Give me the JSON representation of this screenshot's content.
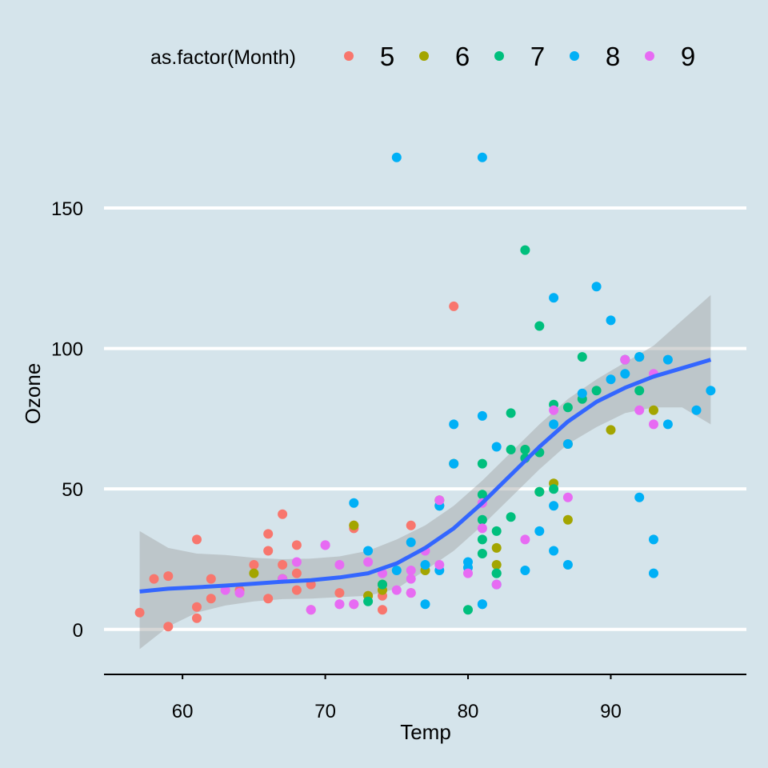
{
  "chart_data": {
    "type": "scatter",
    "xlabel": "Temp",
    "ylabel": "Ozone",
    "xlim": [
      54.5,
      99.5
    ],
    "ylim": [
      -16,
      187
    ],
    "x_ticks": [
      60,
      70,
      80,
      90
    ],
    "y_ticks": [
      0,
      50,
      100,
      150
    ],
    "x_tick_labels": [
      "60",
      "70",
      "80",
      "90"
    ],
    "y_tick_labels": [
      "0",
      "50",
      "100",
      "150"
    ],
    "grid": "horizontal major lines only",
    "background_color": "#d5e4eb",
    "grid_color": "#ffffff",
    "legend": {
      "title": "as.factor(Month)",
      "position": "top"
    },
    "series": [
      {
        "name": "5",
        "color": "#f8766d",
        "points": [
          [
            67,
            41
          ],
          [
            72,
            36
          ],
          [
            74,
            12
          ],
          [
            62,
            18
          ],
          [
            66,
            28
          ],
          [
            65,
            23
          ],
          [
            59,
            19
          ],
          [
            61,
            8
          ],
          [
            57,
            6
          ],
          [
            58,
            18
          ],
          [
            64,
            14
          ],
          [
            66,
            34
          ],
          [
            68,
            30
          ],
          [
            62,
            11
          ],
          [
            59,
            1
          ],
          [
            61,
            4
          ],
          [
            66,
            11
          ],
          [
            67,
            23
          ],
          [
            69,
            16
          ],
          [
            76,
            37
          ],
          [
            68,
            14
          ],
          [
            79,
            115
          ],
          [
            76,
            13
          ],
          [
            78,
            44
          ],
          [
            74,
            7
          ],
          [
            67,
            18
          ],
          [
            72,
            37
          ],
          [
            61,
            32
          ],
          [
            68,
            20
          ],
          [
            69,
            7
          ],
          [
            73,
            12
          ],
          [
            71,
            13
          ],
          [
            72,
            9
          ]
        ]
      },
      {
        "name": "6",
        "color": "#a3a500",
        "points": [
          [
            78,
            46
          ],
          [
            74,
            16
          ],
          [
            67,
            18
          ],
          [
            84,
            64
          ],
          [
            85,
            49
          ],
          [
            79,
            59
          ],
          [
            82,
            29
          ],
          [
            87,
            39
          ],
          [
            90,
            71
          ],
          [
            87,
            66
          ],
          [
            93,
            78
          ],
          [
            82,
            23
          ],
          [
            86,
            52
          ],
          [
            72,
            37
          ],
          [
            65,
            20
          ],
          [
            73,
            12
          ],
          [
            77,
            21
          ],
          [
            74,
            14
          ]
        ]
      },
      {
        "name": "7",
        "color": "#00bf7d",
        "points": [
          [
            84,
            135
          ],
          [
            85,
            49
          ],
          [
            81,
            32
          ],
          [
            84,
            64
          ],
          [
            83,
            40
          ],
          [
            83,
            77
          ],
          [
            88,
            97
          ],
          [
            92,
            97
          ],
          [
            92,
            85
          ],
          [
            89,
            85
          ],
          [
            82,
            20
          ],
          [
            73,
            10
          ],
          [
            81,
            27
          ],
          [
            91,
            96
          ],
          [
            80,
            7
          ],
          [
            81,
            48
          ],
          [
            82,
            35
          ],
          [
            84,
            61
          ],
          [
            87,
            79
          ],
          [
            85,
            63
          ],
          [
            74,
            16
          ],
          [
            81,
            59
          ],
          [
            82,
            20
          ],
          [
            86,
            80
          ],
          [
            85,
            108
          ],
          [
            88,
            82
          ],
          [
            86,
            50
          ],
          [
            83,
            64
          ],
          [
            81,
            39
          ]
        ]
      },
      {
        "name": "8",
        "color": "#00b0f6",
        "points": [
          [
            81,
            9
          ],
          [
            81,
            168
          ],
          [
            82,
            16
          ],
          [
            86,
            73
          ],
          [
            85,
            35
          ],
          [
            87,
            66
          ],
          [
            89,
            122
          ],
          [
            90,
            89
          ],
          [
            90,
            110
          ],
          [
            92,
            97
          ],
          [
            86,
            44
          ],
          [
            86,
            28
          ],
          [
            82,
            65
          ],
          [
            80,
            22
          ],
          [
            79,
            59
          ],
          [
            77,
            23
          ],
          [
            76,
            31
          ],
          [
            78,
            44
          ],
          [
            78,
            21
          ],
          [
            77,
            9
          ],
          [
            72,
            45
          ],
          [
            75,
            168
          ],
          [
            79,
            73
          ],
          [
            81,
            76
          ],
          [
            86,
            118
          ],
          [
            88,
            84
          ],
          [
            97,
            85
          ],
          [
            94,
            96
          ],
          [
            96,
            78
          ],
          [
            94,
            73
          ],
          [
            91,
            91
          ],
          [
            92,
            47
          ],
          [
            93,
            32
          ],
          [
            93,
            20
          ],
          [
            87,
            23
          ],
          [
            84,
            21
          ],
          [
            80,
            24
          ],
          [
            78,
            44
          ],
          [
            75,
            21
          ],
          [
            73,
            28
          ],
          [
            81,
            9
          ]
        ]
      },
      {
        "name": "9",
        "color": "#e76bf3",
        "points": [
          [
            70,
            30
          ],
          [
            63,
            14
          ],
          [
            67,
            18
          ],
          [
            70,
            30
          ],
          [
            75,
            14
          ],
          [
            78,
            23
          ],
          [
            76,
            21
          ],
          [
            74,
            20
          ],
          [
            68,
            24
          ],
          [
            71,
            9
          ],
          [
            71,
            23
          ],
          [
            73,
            24
          ],
          [
            69,
            7
          ],
          [
            64,
            13
          ],
          [
            76,
            18
          ],
          [
            78,
            46
          ],
          [
            77,
            28
          ],
          [
            81,
            45
          ],
          [
            82,
            16
          ],
          [
            84,
            32
          ],
          [
            87,
            47
          ],
          [
            86,
            78
          ],
          [
            91,
            96
          ],
          [
            93,
            73
          ],
          [
            93,
            91
          ],
          [
            92,
            78
          ],
          [
            80,
            20
          ],
          [
            81,
            36
          ],
          [
            71,
            9
          ],
          [
            76,
            13
          ],
          [
            72,
            9
          ]
        ]
      }
    ],
    "smooth": {
      "color": "#3366ff",
      "band_color": "#999999",
      "points": [
        [
          57,
          13.5,
          -7,
          35
        ],
        [
          59,
          14.5,
          1,
          29
        ],
        [
          61,
          15,
          6,
          27
        ],
        [
          63,
          15.6,
          8.5,
          26.5
        ],
        [
          65,
          16.3,
          10,
          25.5
        ],
        [
          67,
          17,
          10.8,
          25
        ],
        [
          69,
          17.5,
          11,
          25.2
        ],
        [
          71,
          18.5,
          11.5,
          26
        ],
        [
          73,
          20,
          12,
          28
        ],
        [
          75,
          23.5,
          14.5,
          32
        ],
        [
          77,
          29,
          21,
          37
        ],
        [
          79,
          36,
          28,
          44
        ],
        [
          81,
          45,
          37,
          53
        ],
        [
          83,
          55,
          47,
          63
        ],
        [
          85,
          65,
          57,
          73
        ],
        [
          87,
          74,
          66,
          82
        ],
        [
          89,
          81,
          72,
          89
        ],
        [
          91,
          86,
          77,
          95
        ],
        [
          93,
          90,
          79,
          101
        ],
        [
          95,
          93,
          79,
          110
        ],
        [
          97,
          96,
          73,
          119
        ]
      ]
    }
  }
}
